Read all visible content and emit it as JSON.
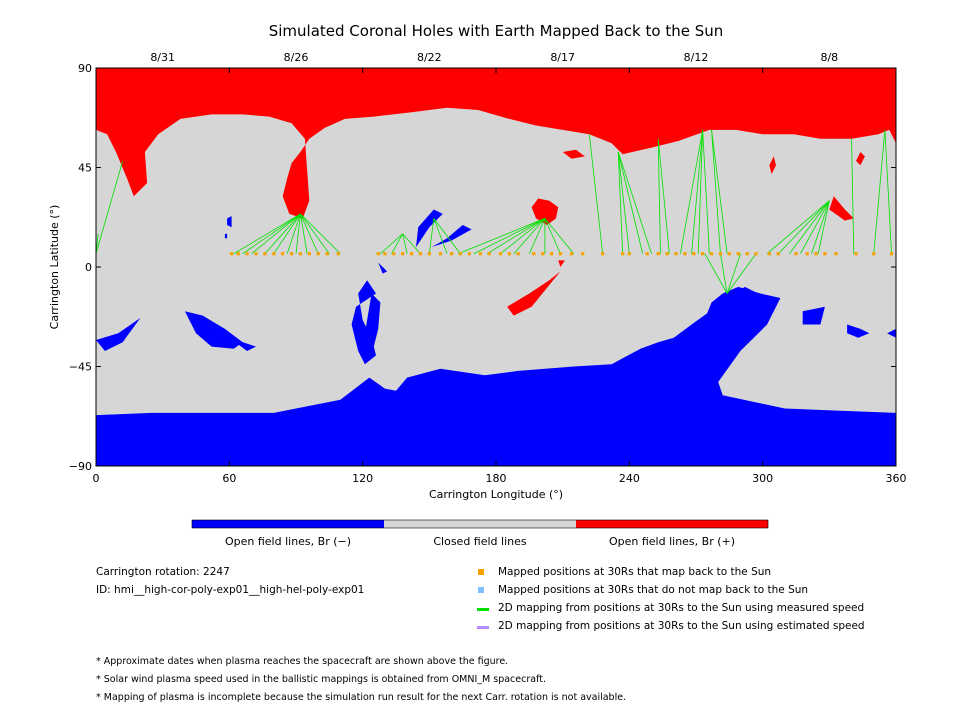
{
  "chart_data": {
    "type": "map",
    "title": "Simulated Coronal Holes with Earth Mapped Back to the Sun",
    "xlabel": "Carrington Longitude (°)",
    "ylabel": "Carrington Latitude (°)",
    "xlim": [
      0,
      360
    ],
    "ylim": [
      -90,
      90
    ],
    "x_ticks": [
      0,
      60,
      120,
      180,
      240,
      300,
      360
    ],
    "y_ticks": [
      90,
      45,
      0,
      -45,
      -90
    ],
    "y_tick_labels": [
      "90",
      "45",
      "0",
      "−45",
      "−90"
    ],
    "top_dates": [
      {
        "label": "8/31",
        "lon": 30
      },
      {
        "label": "8/26",
        "lon": 90
      },
      {
        "label": "8/22",
        "lon": 150
      },
      {
        "label": "8/17",
        "lon": 210
      },
      {
        "label": "8/12",
        "lon": 270
      },
      {
        "label": "8/8",
        "lon": 330
      }
    ],
    "colors": {
      "open_negative": "#0000ff",
      "closed": "#d6d6d6",
      "open_positive": "#ff0000",
      "mapped_point": "#f5a300",
      "unmapped_point": "#7fbfff",
      "measured_line": "#00e000",
      "estimated_line": "#b58cff"
    },
    "colorbar": {
      "labels": [
        "Open field lines, Br (−)",
        "Closed field lines",
        "Open field lines, Br (+)"
      ]
    },
    "mapped_points_lat": 6,
    "mapped_points_lon": [
      61,
      64,
      68,
      72,
      76,
      80,
      84,
      88,
      92,
      96,
      100,
      104,
      109,
      127,
      130,
      134,
      138,
      142,
      146,
      150,
      155,
      160,
      164,
      168,
      173,
      177,
      182,
      186,
      190,
      197,
      201,
      205,
      209,
      214,
      219,
      228,
      237,
      240,
      248,
      253,
      257,
      261,
      265,
      269,
      273,
      277,
      281,
      285,
      289,
      293,
      297,
      303,
      307,
      315,
      320,
      324,
      328,
      333,
      342,
      350,
      358
    ],
    "field_line_groups": [
      {
        "target": [
          1,
          15
        ],
        "sources": [
          0
        ]
      },
      {
        "target": [
          12,
          48
        ],
        "sources": [
          0
        ]
      },
      {
        "target": [
          92,
          24
        ],
        "sources": [
          62,
          66,
          70,
          76,
          80,
          86,
          90,
          95,
          100,
          105,
          110
        ]
      },
      {
        "target": [
          138,
          15
        ],
        "sources": [
          128,
          133,
          140,
          146
        ]
      },
      {
        "target": [
          152,
          22
        ],
        "sources": [
          150,
          158,
          164
        ]
      },
      {
        "target": [
          202,
          22
        ],
        "sources": [
          163,
          170,
          176,
          182,
          188,
          195,
          202,
          209,
          215
        ]
      },
      {
        "target": [
          222,
          60
        ],
        "sources": [
          228
        ]
      },
      {
        "target": [
          235,
          52
        ],
        "sources": [
          237,
          240,
          246,
          250
        ]
      },
      {
        "target": [
          253,
          58
        ],
        "sources": [
          254,
          258
        ]
      },
      {
        "target": [
          273,
          62
        ],
        "sources": [
          263,
          268,
          271,
          276
        ]
      },
      {
        "target": [
          277,
          62
        ],
        "sources": [
          281,
          284
        ]
      },
      {
        "target": [
          330,
          30
        ],
        "sources": [
          302,
          307,
          312,
          317,
          322,
          325
        ]
      },
      {
        "target": [
          284,
          -12
        ],
        "sources": [
          274,
          281,
          290,
          297
        ]
      },
      {
        "target": [
          340,
          58
        ],
        "sources": [
          341
        ]
      },
      {
        "target": [
          355,
          62
        ],
        "sources": [
          350,
          358
        ]
      }
    ],
    "regions": {
      "open_positive": [
        [
          [
            0,
            90
          ],
          [
            360,
            90
          ],
          [
            360,
            56
          ],
          [
            357,
            62
          ],
          [
            352,
            60
          ],
          [
            340,
            58
          ],
          [
            326,
            58
          ],
          [
            314,
            60
          ],
          [
            300,
            60
          ],
          [
            288,
            62
          ],
          [
            276,
            62
          ],
          [
            262,
            57
          ],
          [
            250,
            54
          ],
          [
            237,
            51
          ],
          [
            232,
            56
          ],
          [
            222,
            60
          ],
          [
            210,
            62
          ],
          [
            198,
            64
          ],
          [
            186,
            67
          ],
          [
            172,
            71
          ],
          [
            158,
            72
          ],
          [
            142,
            70
          ],
          [
            125,
            68
          ],
          [
            112,
            67
          ],
          [
            103,
            63
          ],
          [
            96,
            58
          ],
          [
            92,
            52
          ],
          [
            88,
            47
          ],
          [
            86,
            40
          ],
          [
            84,
            32
          ],
          [
            87,
            24
          ],
          [
            93,
            22
          ],
          [
            96,
            30
          ],
          [
            95,
            44
          ],
          [
            94,
            58
          ],
          [
            88,
            65
          ],
          [
            78,
            68
          ],
          [
            66,
            69
          ],
          [
            52,
            69
          ],
          [
            38,
            67
          ],
          [
            28,
            60
          ],
          [
            22,
            52
          ],
          [
            23,
            38
          ],
          [
            17,
            32
          ],
          [
            14,
            40
          ],
          [
            9,
            52
          ],
          [
            5,
            60
          ],
          [
            0,
            62
          ]
        ],
        [
          [
            199,
            31
          ],
          [
            204,
            30
          ],
          [
            208,
            27
          ],
          [
            207,
            22
          ],
          [
            203,
            19
          ],
          [
            198,
            22
          ],
          [
            196,
            27
          ]
        ],
        [
          [
            332,
            32
          ],
          [
            337,
            26
          ],
          [
            341,
            22
          ],
          [
            337,
            21
          ],
          [
            330,
            26
          ]
        ],
        [
          [
            209,
            -2
          ],
          [
            196,
            -18
          ],
          [
            188,
            -22
          ],
          [
            185,
            -18
          ],
          [
            195,
            -12
          ],
          [
            204,
            -6
          ]
        ],
        [
          [
            303,
            46
          ],
          [
            304,
            42
          ],
          [
            306,
            46
          ],
          [
            305,
            50
          ]
        ],
        [
          [
            211,
            3
          ],
          [
            209,
            0
          ],
          [
            208,
            3
          ]
        ],
        [
          [
            210,
            52
          ],
          [
            214,
            49
          ],
          [
            220,
            50
          ],
          [
            216,
            53
          ]
        ],
        [
          [
            342,
            48
          ],
          [
            344,
            46
          ],
          [
            346,
            50
          ],
          [
            344,
            52
          ]
        ]
      ],
      "open_negative": [
        [
          [
            0,
            -67
          ],
          [
            25,
            -66
          ],
          [
            50,
            -66
          ],
          [
            80,
            -66
          ],
          [
            110,
            -60
          ],
          [
            123,
            -50
          ],
          [
            130,
            -55
          ],
          [
            135,
            -56
          ],
          [
            140,
            -50
          ],
          [
            155,
            -46
          ],
          [
            175,
            -49
          ],
          [
            190,
            -47
          ],
          [
            215,
            -45
          ],
          [
            232,
            -44
          ],
          [
            245,
            -37
          ],
          [
            253,
            -34
          ],
          [
            260,
            -32
          ],
          [
            268,
            -26
          ],
          [
            275,
            -21
          ],
          [
            277,
            -16
          ],
          [
            282,
            -12
          ],
          [
            289,
            -9
          ],
          [
            299,
            -12
          ],
          [
            308,
            -14
          ],
          [
            302,
            -26
          ],
          [
            290,
            -38
          ],
          [
            280,
            -52
          ],
          [
            282,
            -58
          ],
          [
            310,
            -64
          ],
          [
            335,
            -65
          ],
          [
            360,
            -66
          ],
          [
            360,
            -90
          ],
          [
            0,
            -90
          ]
        ],
        [
          [
            236,
            -47
          ],
          [
            241,
            -40
          ],
          [
            248,
            -38
          ],
          [
            254,
            -42
          ],
          [
            252,
            -50
          ],
          [
            244,
            -55
          ],
          [
            237,
            -53
          ]
        ],
        [
          [
            286,
            -13
          ],
          [
            292,
            -9
          ],
          [
            298,
            -12
          ],
          [
            294,
            -17
          ],
          [
            288,
            -16
          ]
        ],
        [
          [
            260,
            -36
          ],
          [
            266,
            -38
          ],
          [
            266,
            -34
          ]
        ],
        [
          [
            40,
            -20
          ],
          [
            48,
            -22
          ],
          [
            58,
            -28
          ],
          [
            66,
            -34
          ],
          [
            62,
            -37
          ],
          [
            52,
            -36
          ],
          [
            45,
            -30
          ]
        ],
        [
          [
            126,
            -12
          ],
          [
            122,
            -6
          ],
          [
            118,
            -12
          ],
          [
            120,
            -24
          ],
          [
            124,
            -32
          ],
          [
            126,
            -40
          ],
          [
            121,
            -44
          ],
          [
            118,
            -38
          ],
          [
            115,
            -26
          ],
          [
            117,
            -18
          ]
        ],
        [
          [
            124,
            -12
          ],
          [
            128,
            -16
          ],
          [
            127,
            -28
          ],
          [
            125,
            -36
          ],
          [
            121,
            -30
          ]
        ],
        [
          [
            127,
            2
          ],
          [
            131,
            -2
          ],
          [
            129,
            -3
          ]
        ],
        [
          [
            151,
            9
          ],
          [
            160,
            12
          ],
          [
            169,
            17
          ],
          [
            165,
            19
          ],
          [
            158,
            13
          ]
        ],
        [
          [
            144,
            9
          ],
          [
            150,
            18
          ],
          [
            156,
            24
          ],
          [
            152,
            26
          ],
          [
            145,
            18
          ]
        ],
        [
          [
            0,
            -33
          ],
          [
            10,
            -30
          ],
          [
            20,
            -23
          ],
          [
            12,
            -34
          ],
          [
            4,
            -38
          ]
        ],
        [
          [
            318,
            -20
          ],
          [
            328,
            -18
          ],
          [
            326,
            -26
          ],
          [
            318,
            -26
          ]
        ],
        [
          [
            338,
            -26
          ],
          [
            344,
            -28
          ],
          [
            348,
            -30
          ],
          [
            343,
            -32
          ],
          [
            338,
            -30
          ]
        ],
        [
          [
            356,
            -30
          ],
          [
            360,
            -28
          ],
          [
            360,
            -32
          ]
        ],
        [
          [
            60,
            -32
          ],
          [
            68,
            -38
          ],
          [
            72,
            -36
          ]
        ],
        [
          [
            59,
            22
          ],
          [
            61,
            23
          ],
          [
            61,
            18
          ],
          [
            59,
            19
          ]
        ],
        [
          [
            58,
            15
          ],
          [
            59,
            15
          ],
          [
            59,
            13
          ],
          [
            58,
            13
          ]
        ]
      ]
    }
  },
  "metadata": {
    "rotation": "Carrington rotation: 2247",
    "id": "ID: hmi__high-cor-poly-exp01__high-hel-poly-exp01"
  },
  "legend": {
    "items": [
      {
        "label": "Mapped positions at 30Rs that map back to the Sun",
        "kind": "square",
        "color": "#f5a300"
      },
      {
        "label": "Mapped positions at 30Rs that do not map back to the Sun",
        "kind": "square",
        "color": "#7fbfff"
      },
      {
        "label": "2D mapping from positions at 30Rs to the Sun using measured speed",
        "kind": "line",
        "color": "#00e000"
      },
      {
        "label": "2D mapping from positions at 30Rs to the Sun using estimated speed",
        "kind": "line",
        "color": "#b58cff"
      }
    ]
  },
  "notes": [
    "* Approximate dates when plasma reaches the spacecraft are shown above the figure.",
    "* Solar wind plasma speed used in the ballistic mappings is obtained from OMNI_M spacecraft.",
    "* Mapping of plasma is incomplete because the simulation run result for the next Carr. rotation is not available."
  ]
}
